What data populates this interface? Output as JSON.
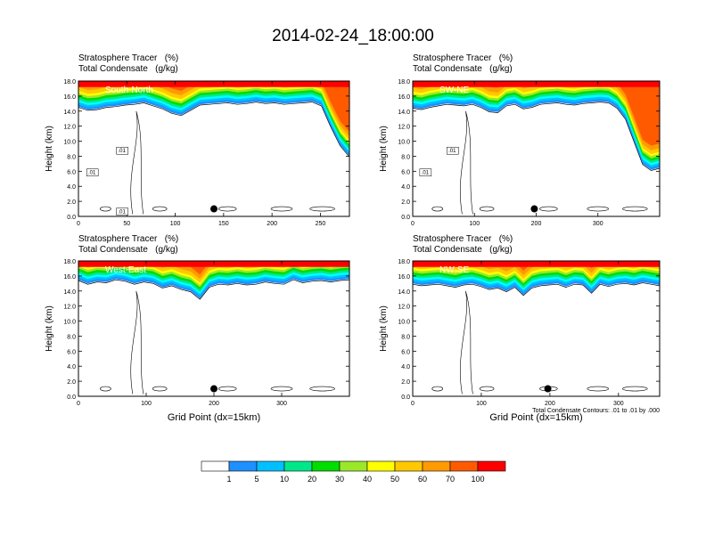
{
  "title": "2014-02-24_18:00:00",
  "chart_data": [
    {
      "type": "heatmap",
      "label": "South-North",
      "title_line1": "Stratosphere Tracer   (%)",
      "title_line2": "Total Condensate   (g/kg)",
      "ylabel": "Height (km)",
      "xlabel": "",
      "xlim": [
        0,
        280
      ],
      "ylim": [
        0,
        18
      ],
      "xticks": [
        0,
        50,
        100,
        150,
        200,
        250
      ],
      "yticks": [
        "0.0",
        "2.0",
        "4.0",
        "6.0",
        "8.0",
        "10.0",
        "12.0",
        "14.0",
        "16.0",
        "18.0"
      ],
      "tropopause_km": [
        14.6,
        14.2,
        14.3,
        14.6,
        14.7,
        14.9,
        15.0,
        15.2,
        14.8,
        14.4,
        13.8,
        13.5,
        14.2,
        14.9,
        15.0,
        15.1,
        15.2,
        15.0,
        15.1,
        15.3,
        15.1,
        15.2,
        15.0,
        15.1,
        15.2,
        15.3,
        14.8,
        12.0,
        9.5,
        8.0
      ],
      "marker_x": 140,
      "contour_labels": [
        ".01",
        ".01",
        ".01"
      ]
    },
    {
      "type": "heatmap",
      "label": "SW-NE",
      "title_line1": "Stratosphere Tracer   (%)",
      "title_line2": "Total Condensate   (g/kg)",
      "ylabel": "Height (km)",
      "xlabel": "",
      "xlim": [
        0,
        400
      ],
      "ylim": [
        0,
        18
      ],
      "xticks": [
        0,
        100,
        200,
        300
      ],
      "yticks": [
        "0.0",
        "2.0",
        "4.0",
        "6.0",
        "8.0",
        "10.0",
        "12.0",
        "14.0",
        "16.0",
        "18.0"
      ],
      "tropopause_km": [
        14.5,
        14.3,
        14.6,
        14.8,
        15.0,
        14.9,
        14.8,
        15.0,
        14.6,
        14.0,
        13.9,
        14.8,
        15.0,
        14.4,
        14.6,
        15.0,
        15.1,
        15.2,
        15.0,
        14.9,
        15.1,
        15.2,
        15.3,
        15.2,
        14.5,
        13.0,
        10.0,
        7.0,
        6.2,
        6.5
      ],
      "marker_x": 197,
      "contour_labels": [
        ".01",
        ".01"
      ]
    },
    {
      "type": "heatmap",
      "label": "West-East",
      "title_line1": "Stratosphere Tracer   (%)",
      "title_line2": "Total Condensate   (g/kg)",
      "ylabel": "Height (km)",
      "xlabel": "Grid Point (dx=15km)",
      "xlim": [
        0,
        400
      ],
      "ylim": [
        0,
        18
      ],
      "xticks": [
        0,
        100,
        200,
        300
      ],
      "yticks": [
        "0.0",
        "2.0",
        "4.0",
        "6.0",
        "8.0",
        "10.0",
        "12.0",
        "14.0",
        "16.0",
        "18.0"
      ],
      "tropopause_km": [
        15.5,
        15.0,
        15.3,
        15.2,
        15.6,
        15.4,
        15.0,
        15.3,
        15.1,
        14.5,
        14.8,
        14.3,
        14.0,
        13.0,
        14.6,
        15.0,
        14.9,
        15.1,
        14.9,
        15.0,
        15.3,
        15.1,
        15.0,
        15.6,
        15.2,
        15.4,
        15.5,
        15.3,
        15.5,
        15.6
      ],
      "marker_x": 200,
      "contour_labels": []
    },
    {
      "type": "heatmap",
      "label": "NW-SE",
      "title_line1": "Stratosphere Tracer   (%)",
      "title_line2": "Total Condensate   (g/kg)",
      "ylabel": "Height (km)",
      "xlabel": "Grid Point (dx=15km)",
      "xlim": [
        0,
        360
      ],
      "ylim": [
        0,
        18
      ],
      "xticks": [
        0,
        100,
        200,
        300
      ],
      "yticks": [
        "0.0",
        "2.0",
        "4.0",
        "6.0",
        "8.0",
        "10.0",
        "12.0",
        "14.0",
        "16.0",
        "18.0"
      ],
      "tropopause_km": [
        15.0,
        14.8,
        14.9,
        15.0,
        14.8,
        14.6,
        14.9,
        15.0,
        14.7,
        14.3,
        14.5,
        14.0,
        14.6,
        13.5,
        14.5,
        14.8,
        14.9,
        15.0,
        14.6,
        15.0,
        14.9,
        13.8,
        15.0,
        14.7,
        15.0,
        15.1,
        14.9,
        15.2,
        15.0,
        14.8
      ],
      "marker_x": 197,
      "contour_labels": [],
      "note": "Total Condensate Contours: .01 to .01 by .000"
    }
  ],
  "colorbar": {
    "labels": [
      "1",
      "5",
      "10",
      "20",
      "30",
      "40",
      "50",
      "60",
      "70",
      "100"
    ],
    "colors": [
      "#ffffff",
      "#1e90ff",
      "#00bfff",
      "#00ffff",
      "#00e88a",
      "#00dd00",
      "#9be82a",
      "#ffff00",
      "#ffc800",
      "#ff9a00",
      "#ff5a00",
      "#ff0000"
    ]
  }
}
